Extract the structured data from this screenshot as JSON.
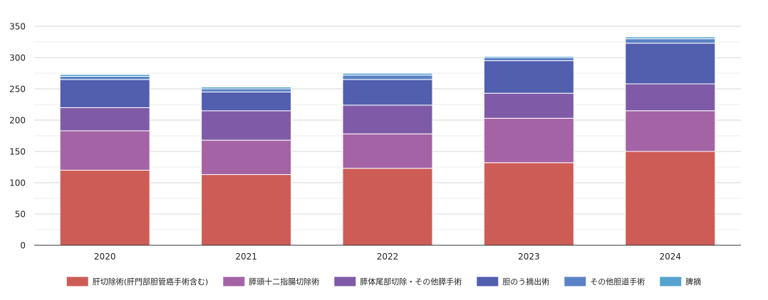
{
  "chart_data": {
    "type": "bar",
    "stacked": true,
    "title": "",
    "xlabel": "",
    "ylabel": "",
    "categories": [
      "2020",
      "2021",
      "2022",
      "2023",
      "2024"
    ],
    "ylim": [
      0,
      350
    ],
    "yticks": [
      0,
      50,
      100,
      150,
      200,
      250,
      300,
      350
    ],
    "grid": true,
    "legend_position": "bottom",
    "series": [
      {
        "name": "肝切除術(肝門部胆管癌手術含む)",
        "color": "#cd5c57",
        "values": [
          120,
          113,
          123,
          132,
          150
        ]
      },
      {
        "name": "膵頭十二指腸切除術",
        "color": "#a463a5",
        "values": [
          63,
          55,
          55,
          71,
          65
        ]
      },
      {
        "name": "膵体尾部切除・その他膵手術",
        "color": "#7f5ba7",
        "values": [
          37,
          47,
          46,
          40,
          43
        ]
      },
      {
        "name": "胆のう摘出術",
        "color": "#525eae",
        "values": [
          45,
          30,
          41,
          52,
          65
        ]
      },
      {
        "name": "その他胆道手術",
        "color": "#5b82c6",
        "values": [
          5,
          5,
          7,
          5,
          7
        ]
      },
      {
        "name": "脾摘",
        "color": "#55a3cf",
        "values": [
          3,
          3,
          3,
          2,
          3
        ]
      }
    ]
  }
}
